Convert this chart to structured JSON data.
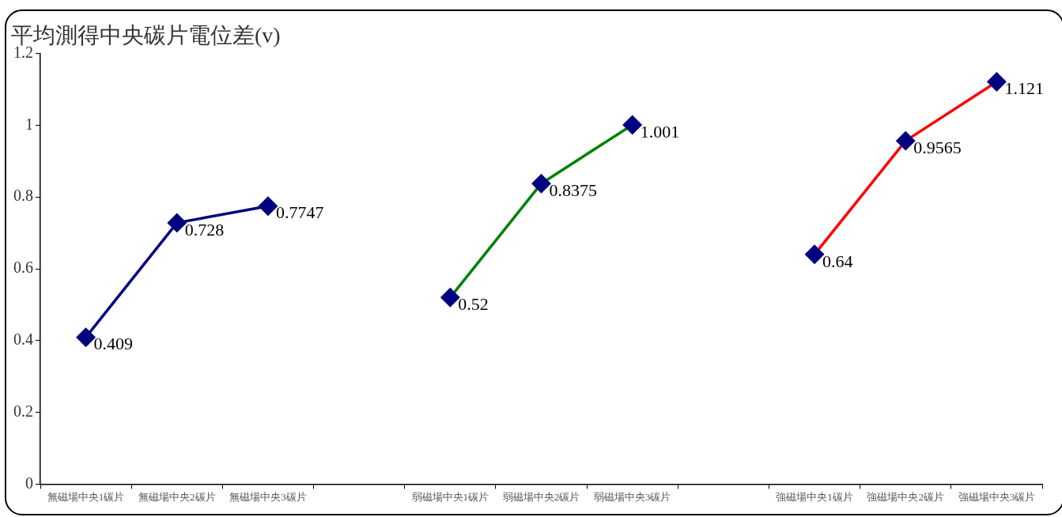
{
  "chart_data": {
    "type": "line",
    "title": "平均測得中央碳片電位差(v)",
    "categories": [
      "無磁場中央1碳片",
      "無磁場中央2碳片",
      "無磁場中央3碳片",
      null,
      "弱磁場中央1碳片",
      "弱磁場中央2碳片",
      "弱磁場中央3碳片",
      null,
      "強磁場中央1碳片",
      "強磁場中央2碳片",
      "強磁場中央3碳片"
    ],
    "series": [
      {
        "color": "#000080",
        "colors": [
          "#000080",
          "#000080",
          "#000080",
          null,
          null,
          null,
          null,
          null,
          null,
          null,
          null
        ],
        "values": [
          0.409,
          0.728,
          0.7747,
          null,
          null,
          null,
          null,
          null,
          null,
          null,
          null
        ]
      },
      {
        "color": "#008000",
        "colors": [
          null,
          null,
          null,
          null,
          "#000080",
          "#000080",
          "#000080",
          null,
          null,
          null,
          null
        ],
        "values": [
          null,
          null,
          null,
          null,
          0.52,
          0.8375,
          1.001,
          null,
          null,
          null,
          null
        ]
      },
      {
        "color": "#ff0000",
        "colors": [
          null,
          null,
          null,
          null,
          null,
          null,
          null,
          null,
          "#000080",
          "#000080",
          "#000080"
        ],
        "values": [
          null,
          null,
          null,
          null,
          null,
          null,
          null,
          null,
          0.64,
          0.9565,
          1.121
        ]
      }
    ],
    "ylim": [
      0,
      1.2
    ],
    "yticks": [
      0,
      0.2,
      0.4,
      0.6,
      0.8,
      1,
      1.2
    ],
    "grid": false,
    "legend": false,
    "marker": "diamond",
    "line_style": "solid",
    "data_labels": true
  }
}
